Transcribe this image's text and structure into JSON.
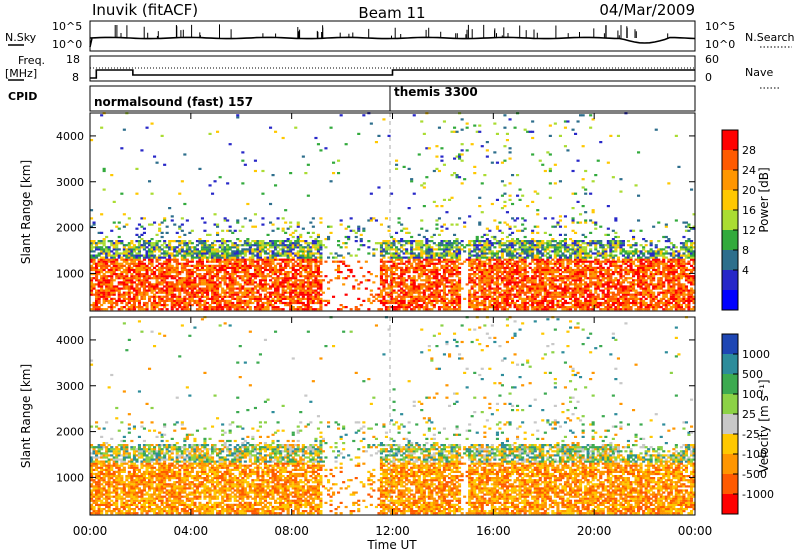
{
  "header": {
    "station": "Inuvik (fitACF)",
    "beam": "Beam 11",
    "date": "04/Mar/2009"
  },
  "top_panels": {
    "nsky_label": "N.Sky",
    "nsky_ticks": [
      "10^5",
      "10^0"
    ],
    "nsearch_label": "N.Search",
    "nsearch_ticks": [
      "10^5",
      "10^0"
    ],
    "freq_label": "Freq.",
    "freq_unit": "[MHz]",
    "freq_ticks": [
      "18",
      "8"
    ],
    "nave_label": "Nave",
    "nave_ticks": [
      "60",
      "0"
    ],
    "cpid_label": "CPID",
    "cpid_segments": [
      {
        "name": "normalsound (fast) 157",
        "start_hour": 0,
        "end_hour": 12
      },
      {
        "name": "themis 3300",
        "start_hour": 12,
        "end_hour": 24
      }
    ]
  },
  "chart_data": [
    {
      "type": "heatmap",
      "title": "Power",
      "ylabel": "Slant Range [km]",
      "colorbar_label": "Power [dB]",
      "colorbar_ticks": [
        "28",
        "24",
        "20",
        "16",
        "12",
        "8",
        "4"
      ],
      "colorbar_colors": [
        "#ff0000",
        "#ff5a00",
        "#ff9600",
        "#ffc800",
        "#aadc32",
        "#32aa3c",
        "#2d6e8c",
        "#2828c8",
        "#0000ff"
      ],
      "ylim": [
        180,
        4500
      ],
      "yticks": [
        "4000",
        "3000",
        "2000",
        "1000"
      ],
      "yticks_values": [
        4000,
        3000,
        2000,
        1000
      ],
      "xlim_hours": [
        0,
        24
      ]
    },
    {
      "type": "heatmap",
      "title": "Velocity",
      "ylabel": "Slant Range [km]",
      "colorbar_label": "Velocity [m s⁻¹]",
      "colorbar_ticks": [
        "1000",
        "500",
        "100",
        "25",
        "-25",
        "-100",
        "-500",
        "-1000"
      ],
      "colorbar_colors": [
        "#1e46b4",
        "#2d8c9b",
        "#3caa50",
        "#8cd246",
        "#c8c8c8",
        "#ffc800",
        "#ff9600",
        "#ff5a00",
        "#ff0000"
      ],
      "ylim": [
        180,
        4500
      ],
      "yticks": [
        "4000",
        "3000",
        "2000",
        "1000"
      ],
      "yticks_values": [
        4000,
        3000,
        2000,
        1000
      ],
      "xlim_hours": [
        0,
        24
      ]
    }
  ],
  "x_axis": {
    "label": "Time UT",
    "ticks": [
      "00:00",
      "04:00",
      "08:00",
      "12:00",
      "16:00",
      "20:00",
      "00:00"
    ]
  }
}
